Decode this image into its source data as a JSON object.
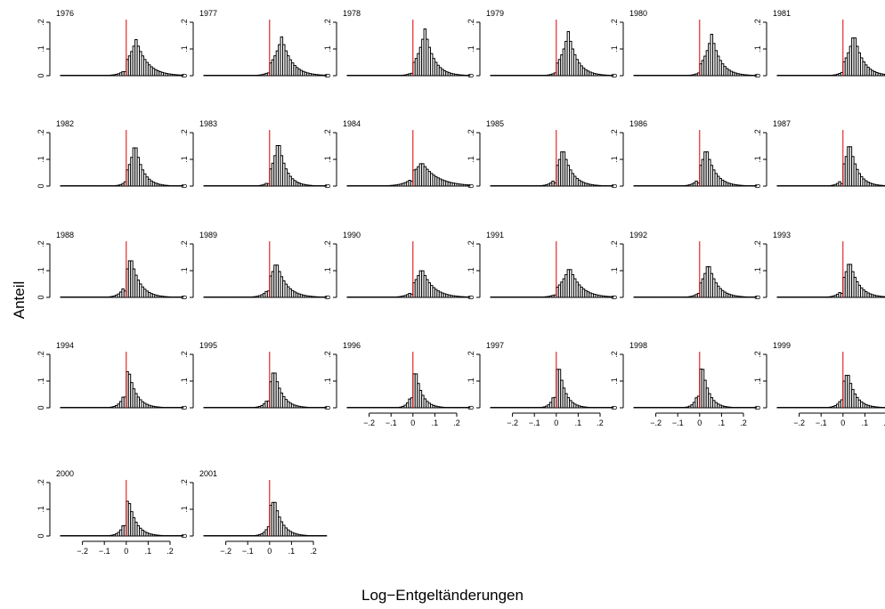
{
  "chart_data": {
    "type": "bar",
    "xlabel": "Log−Entgeltänderungen",
    "ylabel": "Anteil",
    "xlim": [
      -0.3,
      0.26
    ],
    "ylim": [
      0,
      0.2
    ],
    "x_ticks": [
      "−.2",
      "−.1",
      "0",
      ".1",
      ".2"
    ],
    "y_ticks": [
      "0",
      ".1",
      ".2"
    ],
    "reference_line": {
      "x": 0,
      "color": "#dd0000"
    },
    "bin_width": 0.01,
    "panels": [
      {
        "title": "1976",
        "mode": 0.045,
        "peak": 0.135,
        "sigma": 0.05,
        "spike": 0.05,
        "x_axis": false
      },
      {
        "title": "1977",
        "mode": 0.055,
        "peak": 0.145,
        "sigma": 0.045,
        "spike": 0.035,
        "x_axis": false
      },
      {
        "title": "1978",
        "mode": 0.055,
        "peak": 0.175,
        "sigma": 0.04,
        "spike": 0.03,
        "x_axis": false
      },
      {
        "title": "1979",
        "mode": 0.055,
        "peak": 0.165,
        "sigma": 0.04,
        "spike": 0.035,
        "x_axis": false
      },
      {
        "title": "1980",
        "mode": 0.055,
        "peak": 0.155,
        "sigma": 0.04,
        "spike": 0.04,
        "x_axis": false
      },
      {
        "title": "1981",
        "mode": 0.05,
        "peak": 0.16,
        "sigma": 0.04,
        "spike": 0.04,
        "x_axis": false
      },
      {
        "title": "1982",
        "mode": 0.04,
        "peak": 0.165,
        "sigma": 0.035,
        "spike": 0.06,
        "x_axis": false
      },
      {
        "title": "1983",
        "mode": 0.04,
        "peak": 0.175,
        "sigma": 0.035,
        "spike": 0.03,
        "x_axis": false
      },
      {
        "title": "1984",
        "mode": 0.04,
        "peak": 0.09,
        "sigma": 0.07,
        "spike": 0.06,
        "x_axis": false
      },
      {
        "title": "1985",
        "mode": 0.03,
        "peak": 0.145,
        "sigma": 0.04,
        "spike": 0.04,
        "x_axis": false
      },
      {
        "title": "1986",
        "mode": 0.03,
        "peak": 0.145,
        "sigma": 0.04,
        "spike": 0.04,
        "x_axis": false
      },
      {
        "title": "1987",
        "mode": 0.03,
        "peak": 0.17,
        "sigma": 0.035,
        "spike": 0.03,
        "x_axis": false
      },
      {
        "title": "1988",
        "mode": 0.02,
        "peak": 0.155,
        "sigma": 0.04,
        "spike": 0.08,
        "x_axis": false
      },
      {
        "title": "1989",
        "mode": 0.03,
        "peak": 0.135,
        "sigma": 0.045,
        "spike": 0.08,
        "x_axis": false
      },
      {
        "title": "1990",
        "mode": 0.04,
        "peak": 0.11,
        "sigma": 0.05,
        "spike": 0.04,
        "x_axis": false
      },
      {
        "title": "1991",
        "mode": 0.06,
        "peak": 0.115,
        "sigma": 0.05,
        "spike": 0.03,
        "x_axis": false
      },
      {
        "title": "1992",
        "mode": 0.04,
        "peak": 0.13,
        "sigma": 0.04,
        "spike": 0.05,
        "x_axis": false
      },
      {
        "title": "1993",
        "mode": 0.03,
        "peak": 0.14,
        "sigma": 0.04,
        "spike": 0.05,
        "x_axis": false
      },
      {
        "title": "1994",
        "mode": 0.01,
        "peak": 0.145,
        "sigma": 0.035,
        "spike": 0.135,
        "x_axis": false
      },
      {
        "title": "1995",
        "mode": 0.02,
        "peak": 0.15,
        "sigma": 0.035,
        "spike": 0.085,
        "x_axis": false
      },
      {
        "title": "1996",
        "mode": 0.01,
        "peak": 0.15,
        "sigma": 0.03,
        "spike": 0.125,
        "x_axis": true
      },
      {
        "title": "1997",
        "mode": 0.01,
        "peak": 0.17,
        "sigma": 0.03,
        "spike": 0.13,
        "x_axis": true
      },
      {
        "title": "1998",
        "mode": 0.01,
        "peak": 0.17,
        "sigma": 0.03,
        "spike": 0.145,
        "x_axis": true
      },
      {
        "title": "1999",
        "mode": 0.02,
        "peak": 0.14,
        "sigma": 0.035,
        "spike": 0.1,
        "x_axis": true
      },
      {
        "title": "2000",
        "mode": 0.01,
        "peak": 0.14,
        "sigma": 0.035,
        "spike": 0.13,
        "x_axis": true
      },
      {
        "title": "2001",
        "mode": 0.02,
        "peak": 0.145,
        "sigma": 0.035,
        "spike": 0.115,
        "x_axis": true
      }
    ]
  }
}
